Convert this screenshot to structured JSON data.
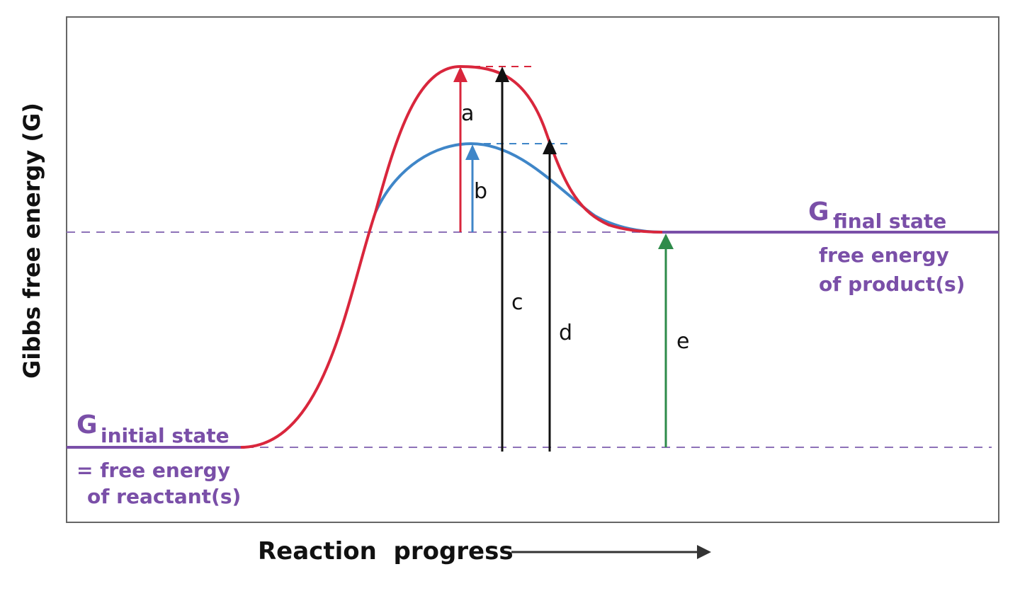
{
  "axes": {
    "y_label": "Gibbs free energy (G)",
    "x_label": "Reaction  progress"
  },
  "initial_state": {
    "symbol": "G",
    "subscript": "initial state",
    "desc_line1": "= free energy",
    "desc_line2": "of reactant(s)"
  },
  "final_state": {
    "symbol": "G",
    "subscript": "final state",
    "desc_line1": "free energy",
    "desc_line2": "of product(s)"
  },
  "arrow_labels": {
    "a": "a",
    "b": "b",
    "c": "c",
    "d": "d",
    "e": "e"
  },
  "colors": {
    "uncatalyzed_curve": "#d9263c",
    "catalyzed_curve": "#3f86c8",
    "state_lines": "#7a4fa8",
    "reaction_energy_arrow": "#2e8b4a",
    "total_arrows": "#111111"
  }
}
